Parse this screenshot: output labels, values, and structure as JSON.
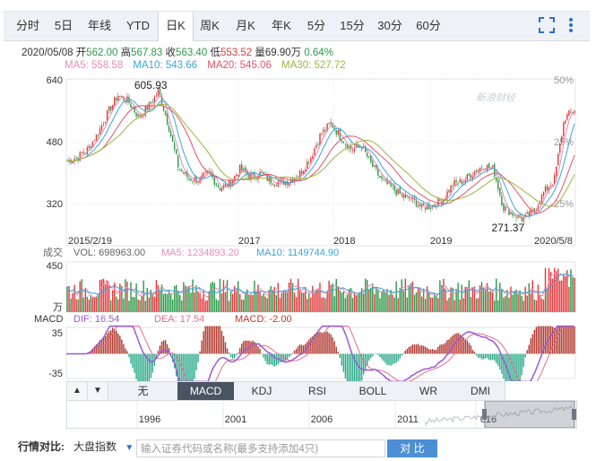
{
  "tabs": [
    {
      "label": "分时",
      "active": false
    },
    {
      "label": "5日",
      "active": false
    },
    {
      "label": "年线",
      "active": false
    },
    {
      "label": "YTD",
      "active": false
    },
    {
      "label": "日K",
      "active": true
    },
    {
      "label": "周K",
      "active": false
    },
    {
      "label": "月K",
      "active": false
    },
    {
      "label": "年K",
      "active": false
    },
    {
      "label": "5分",
      "active": false
    },
    {
      "label": "15分",
      "active": false
    },
    {
      "label": "30分",
      "active": false
    },
    {
      "label": "60分",
      "active": false
    }
  ],
  "quote": {
    "date": "2020/05/08",
    "open_label": "开",
    "open": "562.00",
    "high_label": "高",
    "high": "567.83",
    "close_label": "收",
    "close": "563.40",
    "low_label": "低",
    "low": "553.52",
    "volume_label": "量",
    "volume": "69.90万",
    "change": "0.64%"
  },
  "ma": {
    "ma5": "MA5: 558.58",
    "ma10": "MA10: 543.66",
    "ma20": "MA20: 545.06",
    "ma30": "MA30: 527.72"
  },
  "watermark": "新浪财经",
  "price_axis": {
    "labels": [
      "640",
      "480",
      "320"
    ],
    "values": [
      640,
      480,
      320
    ],
    "pct": [
      "50%",
      "25%",
      "-25%"
    ]
  },
  "price_annotations": {
    "max": "605.93",
    "min": "271.37"
  },
  "date_labels": [
    "2015/2/19",
    "2017",
    "2018",
    "2019",
    "2020/5/8"
  ],
  "volume_panel": {
    "title": "成交",
    "vol": "VOL: 698963.00",
    "ma5": "MA5: 1234893.20",
    "ma10": "MA10: 1149744.90",
    "top": "450",
    "unit": "万"
  },
  "macd_panel": {
    "title": "MACD",
    "dif": "DIF: 16.54",
    "dea": "DEA: 17.54",
    "macd": "MACD: -2.00",
    "top": "35",
    "bottom": "-35"
  },
  "indicators": [
    {
      "label": "无",
      "active": false
    },
    {
      "label": "MACD",
      "active": true
    },
    {
      "label": "KDJ",
      "active": false
    },
    {
      "label": "RSI",
      "active": false
    },
    {
      "label": "BOLL",
      "active": false
    },
    {
      "label": "WR",
      "active": false
    },
    {
      "label": "DMI",
      "active": false
    }
  ],
  "navigator_years": [
    "1996",
    "2001",
    "2006",
    "2011",
    "016"
  ],
  "compare": {
    "label": "行情对比:",
    "select": "大盘指数",
    "placeholder": "输入证券代码或名称(最多支持添加4只)",
    "button": "对 比"
  },
  "colors": {
    "up": "#e5383b",
    "down": "#2b9a4a",
    "ma5": "#e88bb5",
    "ma10": "#3aa5d8",
    "ma20": "#e84f6b",
    "ma30": "#9bb83a",
    "dif": "#9b59d6",
    "dea": "#e86a8f"
  },
  "chart_data": {
    "type": "candlestick",
    "x": [
      "2015/2/19",
      "2017",
      "2018",
      "2019",
      "2020/5/8"
    ],
    "y_axis": {
      "ticks": [
        640,
        480,
        320
      ],
      "pct_ticks": [
        "50%",
        "25%",
        "-25%"
      ]
    },
    "close_series": [
      [
        0,
        430
      ],
      [
        0.02,
        440
      ],
      [
        0.04,
        460
      ],
      [
        0.06,
        500
      ],
      [
        0.08,
        555
      ],
      [
        0.1,
        600
      ],
      [
        0.12,
        585
      ],
      [
        0.14,
        545
      ],
      [
        0.16,
        570
      ],
      [
        0.18,
        610
      ],
      [
        0.2,
        520
      ],
      [
        0.22,
        410
      ],
      [
        0.24,
        385
      ],
      [
        0.26,
        380
      ],
      [
        0.28,
        400
      ],
      [
        0.3,
        360
      ],
      [
        0.32,
        370
      ],
      [
        0.34,
        410
      ],
      [
        0.36,
        390
      ],
      [
        0.38,
        398
      ],
      [
        0.4,
        380
      ],
      [
        0.42,
        375
      ],
      [
        0.44,
        380
      ],
      [
        0.46,
        400
      ],
      [
        0.48,
        440
      ],
      [
        0.5,
        500
      ],
      [
        0.52,
        528
      ],
      [
        0.54,
        490
      ],
      [
        0.56,
        460
      ],
      [
        0.58,
        470
      ],
      [
        0.6,
        420
      ],
      [
        0.62,
        380
      ],
      [
        0.64,
        360
      ],
      [
        0.66,
        340
      ],
      [
        0.68,
        330
      ],
      [
        0.7,
        310
      ],
      [
        0.72,
        315
      ],
      [
        0.74,
        330
      ],
      [
        0.76,
        370
      ],
      [
        0.78,
        378
      ],
      [
        0.8,
        400
      ],
      [
        0.82,
        418
      ],
      [
        0.84,
        410
      ],
      [
        0.86,
        310
      ],
      [
        0.88,
        292
      ],
      [
        0.9,
        280
      ],
      [
        0.92,
        300
      ],
      [
        0.94,
        350
      ],
      [
        0.96,
        380
      ],
      [
        0.98,
        540
      ],
      [
        1.0,
        563
      ]
    ],
    "max_label": {
      "value": 605.93,
      "pos": 0.18
    },
    "min_label": {
      "value": 271.37,
      "pos": 0.9
    },
    "volume": {
      "top": 450,
      "vol": 698963.0,
      "ma5": 1234893.2,
      "ma10": 1149744.9
    },
    "macd": {
      "range": [
        -35,
        35
      ],
      "dif": 16.54,
      "dea": 17.54,
      "macd": -2.0
    }
  }
}
